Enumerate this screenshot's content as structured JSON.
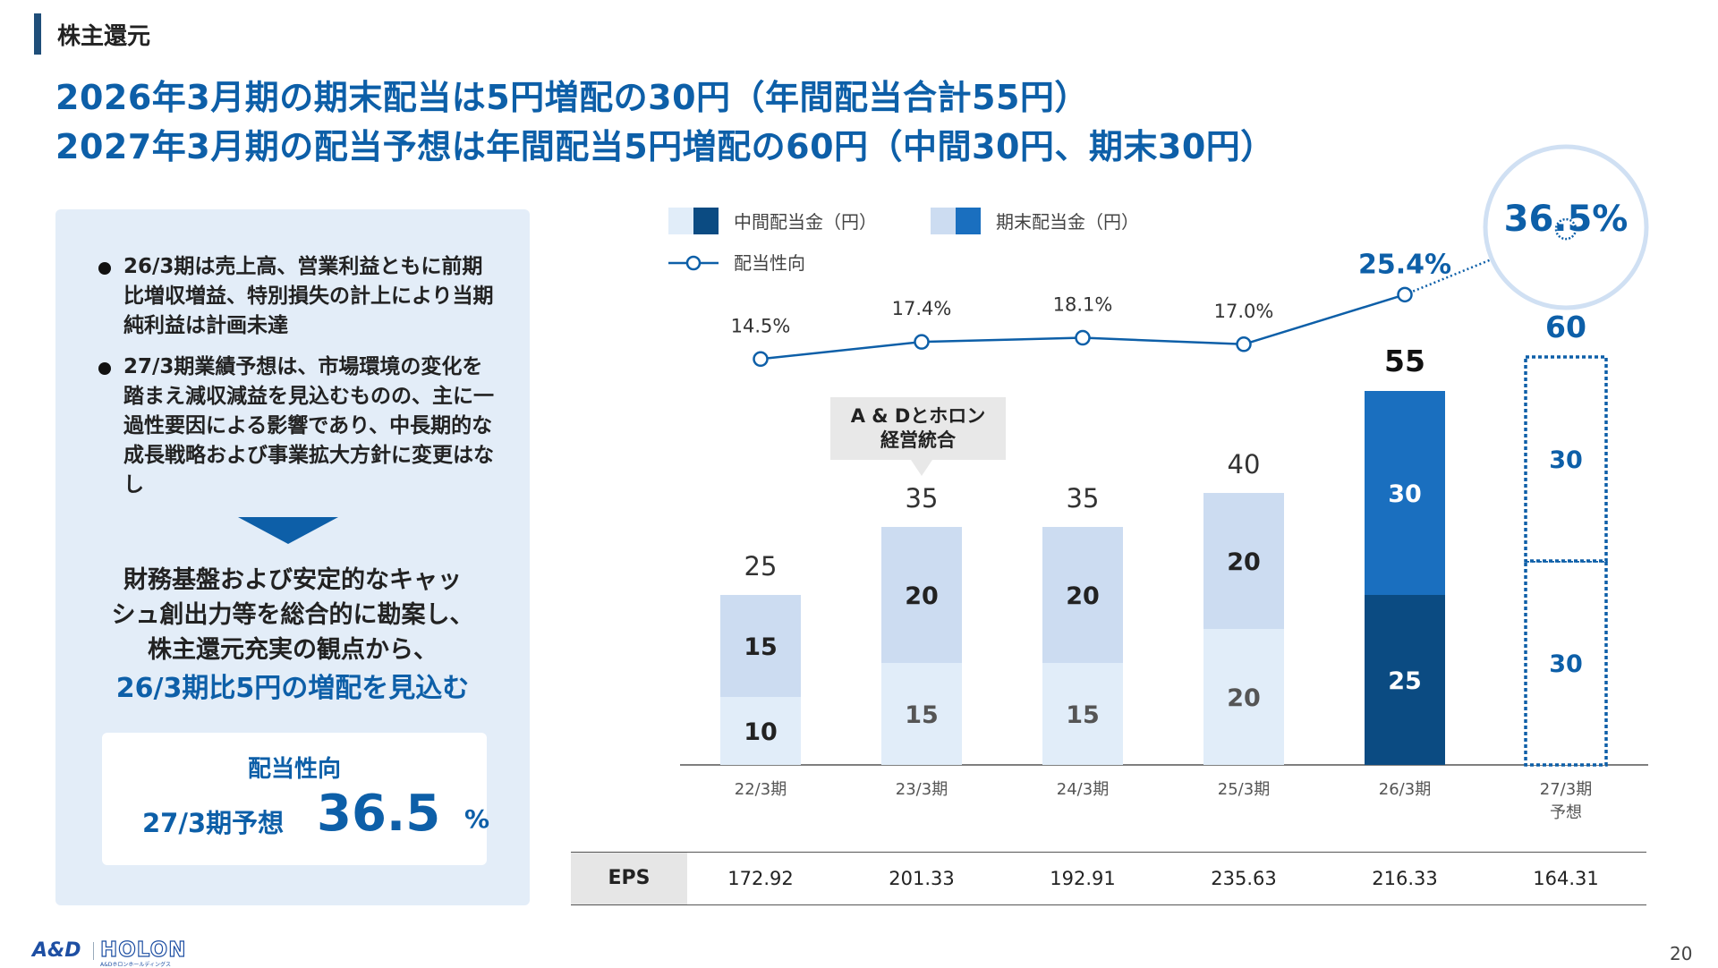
{
  "section": {
    "label": "株主還元"
  },
  "headline": {
    "line1": "2026年3月期の期末配当は5円増配の30円（年間配当合計55円）",
    "line2": "2027年3月期の配当予想は年間配当5円増配の60円（中間30円、期末30円）"
  },
  "left_panel": {
    "bullets": [
      "26/3期は売上高、営業利益ともに前期比増収増益、特別損失の計上により当期純利益は計画未達",
      "27/3期業績予想は、市場環境の変化を踏まえ減収減益を見込むものの、主に一過性要因による影響であり、中長期的な成長戦略および事業拡大方針に変更はなし"
    ],
    "summary": {
      "line1": "財務基盤および安定的なキャッ",
      "line2": "シュ創出力等を総合的に勘案し、",
      "line3": "株主還元充実の観点から、",
      "highlight": "26/3期比5円の増配を見込む"
    },
    "ratio_box": {
      "label": "配当性向",
      "sub": "27/3期予想",
      "value": "36.5",
      "unit": "%"
    }
  },
  "colors": {
    "primary": "#0d5fa8",
    "dark_navy": "#0b4b82",
    "mid_blue": "#1a6fbf",
    "light_blue": "#ccdcf1",
    "pale_blue": "#e1edf9",
    "panel_bg": "#e3edf8"
  },
  "chart_data": {
    "type": "bar",
    "stacked": true,
    "categories": [
      "22/3期",
      "23/3期",
      "24/3期",
      "25/3期",
      "26/3期",
      "27/3期予想"
    ],
    "category_lines": [
      [
        "22/3期"
      ],
      [
        "23/3期"
      ],
      [
        "24/3期"
      ],
      [
        "25/3期"
      ],
      [
        "26/3期"
      ],
      [
        "27/3期",
        "予想"
      ]
    ],
    "series": [
      {
        "name": "中間配当金（円）",
        "values": [
          10,
          15,
          15,
          20,
          25,
          30
        ]
      },
      {
        "name": "期末配当金（円）",
        "values": [
          15,
          20,
          20,
          20,
          30,
          30
        ]
      }
    ],
    "totals": [
      25,
      35,
      35,
      40,
      55,
      60
    ],
    "forecast_index": 5,
    "highlight_index": 4,
    "line_series": {
      "name": "配当性向",
      "values": [
        14.5,
        17.4,
        18.1,
        17.0,
        25.4,
        36.5
      ],
      "labels": [
        "14.5%",
        "17.4%",
        "18.1%",
        "17.0%",
        "25.4%",
        "36.5%"
      ]
    },
    "annotation": {
      "line1": "A & Dとホロン",
      "line2": "経営統合",
      "category_index": 1
    },
    "eps": {
      "label": "EPS",
      "values": [
        "172.92",
        "201.33",
        "192.91",
        "235.63",
        "216.33",
        "164.31"
      ]
    },
    "legend_position": "top-left",
    "grid": false
  },
  "logo": {
    "brand1": "A&D",
    "brand2": "HOLON",
    "sub": "A&Dホロンホールディングス"
  },
  "page_number": "20"
}
